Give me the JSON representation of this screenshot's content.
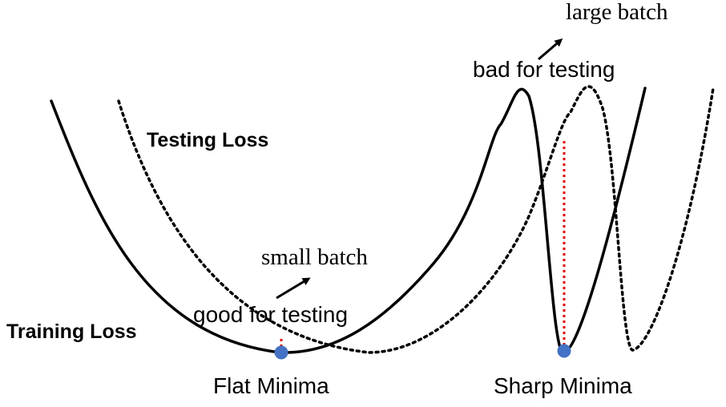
{
  "labels": {
    "training_loss": "Training Loss",
    "testing_loss": "Testing Loss",
    "flat_minima": "Flat Minima",
    "sharp_minima": "Sharp Minima",
    "small_batch": "small batch",
    "large_batch": "large batch",
    "good_for_testing": "good for testing",
    "bad_for_testing": "bad for testing"
  },
  "colors": {
    "curve": "#000000",
    "gap_line": "#e00000",
    "minima_point": "#4472c4"
  }
}
